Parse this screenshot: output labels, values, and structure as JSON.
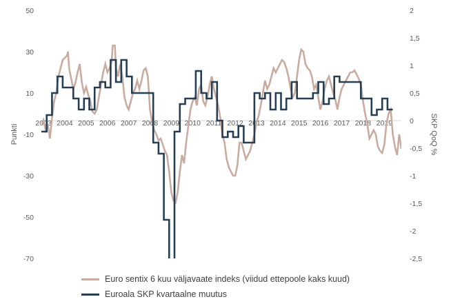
{
  "chart_data": {
    "type": "line",
    "title": "",
    "left_axis": {
      "label": "Punkti",
      "min": -70,
      "max": 50,
      "ticks": [
        50,
        30,
        10,
        -10,
        -30,
        -50,
        -70
      ]
    },
    "right_axis": {
      "label": "SKP QoQ %",
      "min": -2.5,
      "max": 2,
      "ticks": [
        "2",
        "1,5",
        "1",
        "0,5",
        "0",
        "-0,5",
        "-1",
        "-1,5",
        "-2",
        "-2,5"
      ]
    },
    "x_axis": {
      "min": 2003.0,
      "max": 2019.9,
      "tick_labels": [
        "2003",
        "2004",
        "2005",
        "2006",
        "2007",
        "2008",
        "2009",
        "2010",
        "2011",
        "2012",
        "2013",
        "2014",
        "2015",
        "2016",
        "2017",
        "2018",
        "2019"
      ]
    },
    "grid": false,
    "legend_position": "bottom",
    "series": [
      {
        "name": "Euro sentix 6 kuu väljavaate indeks (viidud ettepoole kaks kuud)",
        "axis": "left",
        "color": "#c9aba0",
        "points": [
          [
            2003.0,
            -5
          ],
          [
            2003.1,
            -3
          ],
          [
            2003.2,
            -8
          ],
          [
            2003.3,
            -5
          ],
          [
            2003.4,
            -12
          ],
          [
            2003.5,
            -2
          ],
          [
            2003.6,
            6
          ],
          [
            2003.7,
            10
          ],
          [
            2003.8,
            18
          ],
          [
            2003.9,
            22
          ],
          [
            2004.0,
            26
          ],
          [
            2004.1,
            27
          ],
          [
            2004.2,
            28
          ],
          [
            2004.25,
            30
          ],
          [
            2004.3,
            22
          ],
          [
            2004.4,
            17
          ],
          [
            2004.5,
            12
          ],
          [
            2004.6,
            15
          ],
          [
            2004.7,
            20
          ],
          [
            2004.8,
            24
          ],
          [
            2004.9,
            15
          ],
          [
            2005.0,
            10
          ],
          [
            2005.1,
            13
          ],
          [
            2005.2,
            9
          ],
          [
            2005.3,
            6
          ],
          [
            2005.4,
            1
          ],
          [
            2005.5,
            0
          ],
          [
            2005.6,
            2
          ],
          [
            2005.7,
            8
          ],
          [
            2005.8,
            14
          ],
          [
            2005.9,
            20
          ],
          [
            2006.0,
            24
          ],
          [
            2006.1,
            20
          ],
          [
            2006.2,
            22
          ],
          [
            2006.3,
            25
          ],
          [
            2006.35,
            33
          ],
          [
            2006.45,
            33
          ],
          [
            2006.5,
            22
          ],
          [
            2006.6,
            18
          ],
          [
            2006.7,
            24
          ],
          [
            2006.8,
            18
          ],
          [
            2006.9,
            8
          ],
          [
            2007.0,
            4
          ],
          [
            2007.1,
            2
          ],
          [
            2007.2,
            6
          ],
          [
            2007.3,
            10
          ],
          [
            2007.4,
            12
          ],
          [
            2007.5,
            16
          ],
          [
            2007.6,
            12
          ],
          [
            2007.7,
            16
          ],
          [
            2007.8,
            21
          ],
          [
            2007.9,
            22
          ],
          [
            2008.0,
            18
          ],
          [
            2008.1,
            2
          ],
          [
            2008.2,
            -4
          ],
          [
            2008.3,
            -8
          ],
          [
            2008.4,
            -10
          ],
          [
            2008.5,
            -13
          ],
          [
            2008.6,
            -12
          ],
          [
            2008.7,
            -15
          ],
          [
            2008.8,
            -18
          ],
          [
            2008.9,
            -20
          ],
          [
            2009.0,
            -28
          ],
          [
            2009.1,
            -38
          ],
          [
            2009.2,
            -42
          ],
          [
            2009.3,
            -43
          ],
          [
            2009.4,
            -38
          ],
          [
            2009.5,
            -28
          ],
          [
            2009.6,
            -20
          ],
          [
            2009.7,
            -24
          ],
          [
            2009.8,
            -14
          ],
          [
            2009.9,
            -6
          ],
          [
            2010.0,
            2
          ],
          [
            2010.1,
            6
          ],
          [
            2010.2,
            8
          ],
          [
            2010.3,
            4
          ],
          [
            2010.4,
            12
          ],
          [
            2010.5,
            14
          ],
          [
            2010.6,
            6
          ],
          [
            2010.7,
            4
          ],
          [
            2010.8,
            8
          ],
          [
            2010.9,
            14
          ],
          [
            2011.0,
            18
          ],
          [
            2011.1,
            12
          ],
          [
            2011.2,
            8
          ],
          [
            2011.3,
            4
          ],
          [
            2011.4,
            -2
          ],
          [
            2011.5,
            -10
          ],
          [
            2011.6,
            -14
          ],
          [
            2011.7,
            -22
          ],
          [
            2011.8,
            -26
          ],
          [
            2011.9,
            -28
          ],
          [
            2012.0,
            -30
          ],
          [
            2012.1,
            -30
          ],
          [
            2012.2,
            -25
          ],
          [
            2012.3,
            -14
          ],
          [
            2012.4,
            -14
          ],
          [
            2012.5,
            -18
          ],
          [
            2012.6,
            -22
          ],
          [
            2012.7,
            -20
          ],
          [
            2012.8,
            -18
          ],
          [
            2012.9,
            -14
          ],
          [
            2013.0,
            -10
          ],
          [
            2013.1,
            -4
          ],
          [
            2013.2,
            -1
          ],
          [
            2013.3,
            4
          ],
          [
            2013.4,
            10
          ],
          [
            2013.5,
            16
          ],
          [
            2013.6,
            12
          ],
          [
            2013.7,
            14
          ],
          [
            2013.8,
            18
          ],
          [
            2013.9,
            22
          ],
          [
            2014.0,
            20
          ],
          [
            2014.1,
            22
          ],
          [
            2014.2,
            24
          ],
          [
            2014.3,
            26
          ],
          [
            2014.4,
            25
          ],
          [
            2014.5,
            22
          ],
          [
            2014.6,
            18
          ],
          [
            2014.7,
            12
          ],
          [
            2014.8,
            8
          ],
          [
            2014.9,
            10
          ],
          [
            2015.0,
            18
          ],
          [
            2015.1,
            26
          ],
          [
            2015.2,
            31
          ],
          [
            2015.3,
            30
          ],
          [
            2015.4,
            24
          ],
          [
            2015.5,
            22
          ],
          [
            2015.6,
            21
          ],
          [
            2015.7,
            18
          ],
          [
            2015.8,
            12
          ],
          [
            2015.9,
            14
          ],
          [
            2016.0,
            8
          ],
          [
            2016.1,
            2
          ],
          [
            2016.2,
            6
          ],
          [
            2016.3,
            12
          ],
          [
            2016.4,
            16
          ],
          [
            2016.5,
            18
          ],
          [
            2016.6,
            14
          ],
          [
            2016.7,
            10
          ],
          [
            2016.8,
            7
          ],
          [
            2016.9,
            2
          ],
          [
            2017.0,
            8
          ],
          [
            2017.1,
            12
          ],
          [
            2017.2,
            14
          ],
          [
            2017.3,
            16
          ],
          [
            2017.4,
            18
          ],
          [
            2017.5,
            20
          ],
          [
            2017.6,
            20
          ],
          [
            2017.7,
            21
          ],
          [
            2017.8,
            19
          ],
          [
            2017.9,
            17
          ],
          [
            2018.0,
            14
          ],
          [
            2018.1,
            6
          ],
          [
            2018.2,
            0
          ],
          [
            2018.3,
            -5
          ],
          [
            2018.4,
            -12
          ],
          [
            2018.5,
            -10
          ],
          [
            2018.6,
            -8
          ],
          [
            2018.7,
            -10
          ],
          [
            2018.8,
            -16
          ],
          [
            2018.9,
            -18
          ],
          [
            2019.0,
            -19
          ],
          [
            2019.1,
            -15
          ],
          [
            2019.2,
            -5
          ],
          [
            2019.3,
            0
          ],
          [
            2019.4,
            2
          ],
          [
            2019.5,
            -10
          ],
          [
            2019.6,
            -16
          ],
          [
            2019.7,
            -20
          ],
          [
            2019.8,
            -10
          ],
          [
            2019.9,
            -17
          ]
        ]
      },
      {
        "name": "Euroala SKP kvartaalne muutus",
        "axis": "right",
        "color": "#243f54",
        "points": [
          [
            2003.0,
            -0.2
          ],
          [
            2003.25,
            -0.2
          ],
          [
            2003.25,
            0.1
          ],
          [
            2003.5,
            0.1
          ],
          [
            2003.5,
            0.5
          ],
          [
            2003.75,
            0.5
          ],
          [
            2003.75,
            0.8
          ],
          [
            2004.0,
            0.8
          ],
          [
            2004.0,
            0.6
          ],
          [
            2004.5,
            0.6
          ],
          [
            2004.5,
            0.4
          ],
          [
            2004.75,
            0.4
          ],
          [
            2004.75,
            0.2
          ],
          [
            2005.0,
            0.2
          ],
          [
            2005.0,
            0.4
          ],
          [
            2005.25,
            0.4
          ],
          [
            2005.25,
            0.2
          ],
          [
            2005.5,
            0.2
          ],
          [
            2005.5,
            0.6
          ],
          [
            2005.75,
            0.6
          ],
          [
            2005.75,
            0.7
          ],
          [
            2006.0,
            0.7
          ],
          [
            2006.0,
            0.6
          ],
          [
            2006.25,
            0.6
          ],
          [
            2006.25,
            1.1
          ],
          [
            2006.5,
            1.1
          ],
          [
            2006.5,
            0.7
          ],
          [
            2006.75,
            0.7
          ],
          [
            2006.75,
            1.1
          ],
          [
            2007.0,
            1.1
          ],
          [
            2007.0,
            0.8
          ],
          [
            2007.25,
            0.8
          ],
          [
            2007.25,
            0.5
          ],
          [
            2008.0,
            0.5
          ],
          [
            2008.0,
            0.5
          ],
          [
            2008.25,
            0.5
          ],
          [
            2008.25,
            -0.4
          ],
          [
            2008.5,
            -0.4
          ],
          [
            2008.5,
            -0.6
          ],
          [
            2008.75,
            -0.6
          ],
          [
            2008.75,
            -1.8
          ],
          [
            2009.0,
            -1.8
          ],
          [
            2009.0,
            -3.0
          ],
          [
            2009.25,
            -3.0
          ],
          [
            2009.25,
            -0.2
          ],
          [
            2009.5,
            -0.2
          ],
          [
            2009.5,
            0.3
          ],
          [
            2009.75,
            0.3
          ],
          [
            2009.75,
            0.4
          ],
          [
            2010.0,
            0.4
          ],
          [
            2010.0,
            0.4
          ],
          [
            2010.25,
            0.4
          ],
          [
            2010.25,
            0.9
          ],
          [
            2010.5,
            0.9
          ],
          [
            2010.5,
            0.5
          ],
          [
            2010.75,
            0.5
          ],
          [
            2010.75,
            0.4
          ],
          [
            2011.0,
            0.4
          ],
          [
            2011.0,
            0.7
          ],
          [
            2011.25,
            0.7
          ],
          [
            2011.25,
            0.0
          ],
          [
            2011.5,
            0.0
          ],
          [
            2011.5,
            -0.3
          ],
          [
            2011.75,
            -0.3
          ],
          [
            2011.75,
            -0.2
          ],
          [
            2012.0,
            -0.2
          ],
          [
            2012.0,
            -0.3
          ],
          [
            2012.25,
            -0.3
          ],
          [
            2012.25,
            -0.1
          ],
          [
            2012.5,
            -0.1
          ],
          [
            2012.5,
            -0.4
          ],
          [
            2013.0,
            -0.4
          ],
          [
            2013.0,
            0.5
          ],
          [
            2013.25,
            0.5
          ],
          [
            2013.25,
            0.4
          ],
          [
            2013.5,
            0.4
          ],
          [
            2013.5,
            0.5
          ],
          [
            2013.75,
            0.5
          ],
          [
            2013.75,
            0.2
          ],
          [
            2014.0,
            0.2
          ],
          [
            2014.0,
            0.5
          ],
          [
            2014.25,
            0.5
          ],
          [
            2014.25,
            0.2
          ],
          [
            2014.5,
            0.2
          ],
          [
            2014.5,
            0.4
          ],
          [
            2014.75,
            0.4
          ],
          [
            2014.75,
            0.7
          ],
          [
            2015.0,
            0.7
          ],
          [
            2015.0,
            0.4
          ],
          [
            2015.75,
            0.4
          ],
          [
            2015.75,
            0.5
          ],
          [
            2016.0,
            0.5
          ],
          [
            2016.0,
            0.7
          ],
          [
            2016.25,
            0.7
          ],
          [
            2016.25,
            0.3
          ],
          [
            2016.5,
            0.3
          ],
          [
            2016.5,
            0.4
          ],
          [
            2016.75,
            0.4
          ],
          [
            2016.75,
            0.8
          ],
          [
            2017.0,
            0.8
          ],
          [
            2017.0,
            0.7
          ],
          [
            2018.0,
            0.7
          ],
          [
            2018.0,
            0.4
          ],
          [
            2018.5,
            0.4
          ],
          [
            2018.5,
            0.1
          ],
          [
            2018.75,
            0.1
          ],
          [
            2018.75,
            0.2
          ],
          [
            2019.0,
            0.2
          ],
          [
            2019.0,
            0.4
          ],
          [
            2019.25,
            0.4
          ],
          [
            2019.25,
            0.2
          ],
          [
            2019.5,
            0.2
          ]
        ]
      }
    ]
  }
}
